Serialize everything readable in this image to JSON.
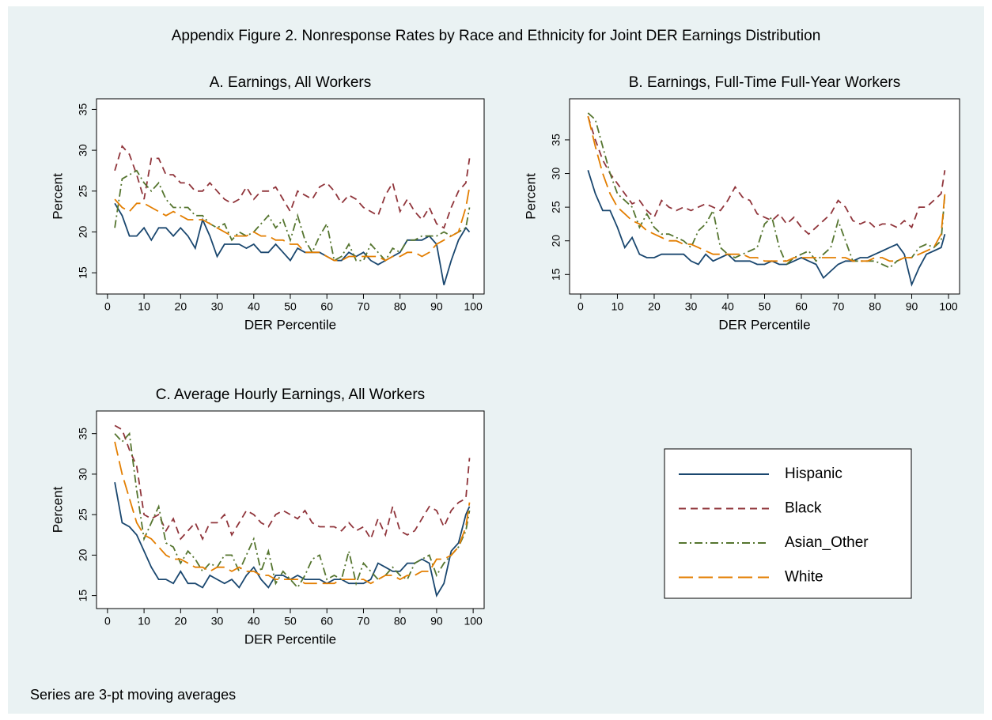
{
  "title": "Appendix Figure 2. Nonresponse Rates by Race and Ethnicity for Joint DER Earnings Distribution",
  "note": "Series are 3-pt moving averages",
  "legend": [
    {
      "name": "Hispanic",
      "color": "#1a476f",
      "dash": "solid"
    },
    {
      "name": "Black",
      "color": "#90353b",
      "dash": "dash"
    },
    {
      "name": "Asian_Other",
      "color": "#55752f",
      "dash": "dashdot"
    },
    {
      "name": "White",
      "color": "#e37e00",
      "dash": "longdash"
    }
  ],
  "chart_data": [
    {
      "type": "line",
      "title": "A. Earnings, All Workers",
      "xlabel": "DER Percentile",
      "ylabel": "Percent",
      "xlim": [
        -3,
        103
      ],
      "ylim": [
        12.4,
        36.3
      ],
      "xticks": [
        0,
        10,
        20,
        30,
        40,
        50,
        60,
        70,
        80,
        90,
        100
      ],
      "yticks": [
        15,
        20,
        25,
        30,
        35
      ],
      "x": [
        2,
        4,
        6,
        8,
        10,
        12,
        14,
        16,
        18,
        20,
        22,
        24,
        26,
        28,
        30,
        32,
        34,
        36,
        38,
        40,
        42,
        44,
        46,
        48,
        50,
        52,
        54,
        56,
        58,
        60,
        62,
        64,
        66,
        68,
        70,
        72,
        74,
        76,
        78,
        80,
        82,
        84,
        86,
        88,
        90,
        92,
        94,
        96,
        98,
        99
      ],
      "series": [
        {
          "values": [
            23.5,
            22,
            19.5,
            19.5,
            20.5,
            19,
            20.5,
            20.5,
            19.5,
            20.5,
            19.5,
            18,
            21.5,
            19.5,
            17,
            18.5,
            18.5,
            18.5,
            18,
            18.5,
            17.5,
            17.5,
            18.5,
            17.5,
            16.5,
            18,
            17.5,
            17.5,
            17.5,
            17,
            16.5,
            16.5,
            17.5,
            17,
            17.5,
            16.5,
            16,
            16.5,
            17,
            17.5,
            19,
            19,
            19,
            19.5,
            18.5,
            13.5,
            16.5,
            19,
            20.5,
            20
          ]
        },
        {
          "values": [
            27.5,
            30.5,
            29.5,
            27,
            24,
            29,
            29,
            27,
            27,
            26,
            26,
            25,
            25,
            26,
            25,
            24,
            23.5,
            24,
            25.5,
            24,
            25,
            25,
            25.5,
            24,
            22.5,
            25,
            24.5,
            24,
            25.5,
            26,
            25,
            23.5,
            24.5,
            24,
            23,
            22.5,
            22,
            24.5,
            26,
            22.5,
            24,
            22.5,
            21.5,
            23,
            21,
            20.5,
            23,
            25,
            26,
            29
          ]
        },
        {
          "values": [
            20.5,
            26.5,
            27,
            27.5,
            26,
            25,
            26,
            24,
            23,
            23,
            23,
            22,
            22,
            21,
            20.5,
            21,
            19,
            20,
            19.5,
            20,
            21,
            22,
            20.5,
            21.5,
            19,
            22,
            19,
            17.5,
            19.5,
            21,
            16.5,
            17,
            18.5,
            16.5,
            16.5,
            18.5,
            17.5,
            16.5,
            18,
            17.5,
            19,
            19,
            19.5,
            19.5,
            19.5,
            20,
            19.5,
            20,
            20.5,
            23
          ]
        },
        {
          "values": [
            24,
            23,
            22.5,
            23.5,
            23.5,
            23,
            22.5,
            22,
            22.5,
            22,
            21.5,
            21.5,
            21.5,
            21,
            20.5,
            20,
            19.5,
            19.5,
            19.5,
            20,
            19.5,
            19.5,
            19,
            19,
            18.5,
            18.5,
            17.5,
            17.5,
            17.5,
            17,
            16.5,
            16.5,
            17,
            17,
            17,
            17,
            17,
            16.5,
            17,
            17,
            17.5,
            17.5,
            17,
            17.5,
            18.5,
            19,
            19.5,
            20,
            23,
            25.5
          ]
        }
      ]
    },
    {
      "type": "line",
      "title": "B. Earnings, Full-Time Full-Year Workers",
      "xlabel": "DER Percentile",
      "ylabel": "Percent",
      "xlim": [
        -3,
        103
      ],
      "ylim": [
        12.1,
        41.1
      ],
      "xticks": [
        0,
        10,
        20,
        30,
        40,
        50,
        60,
        70,
        80,
        90,
        100
      ],
      "yticks": [
        15,
        20,
        25,
        30,
        35
      ],
      "x": [
        2,
        4,
        6,
        8,
        10,
        12,
        14,
        16,
        18,
        20,
        22,
        24,
        26,
        28,
        30,
        32,
        34,
        36,
        38,
        40,
        42,
        44,
        46,
        48,
        50,
        52,
        54,
        56,
        58,
        60,
        62,
        64,
        66,
        68,
        70,
        72,
        74,
        76,
        78,
        80,
        82,
        84,
        86,
        88,
        90,
        92,
        94,
        96,
        98,
        99
      ],
      "series": [
        {
          "values": [
            30.5,
            27,
            24.5,
            24.5,
            22,
            19,
            20.5,
            18,
            17.5,
            17.5,
            18,
            18,
            18,
            18,
            17,
            16.5,
            18,
            17,
            17.5,
            18,
            17,
            17,
            17,
            16.5,
            16.5,
            17,
            16.5,
            16.5,
            17,
            17.5,
            17,
            16.5,
            14.5,
            15.5,
            16.5,
            17,
            17,
            17.5,
            17.5,
            18,
            18.5,
            19,
            19.5,
            18,
            13.5,
            16,
            18,
            18.5,
            19,
            21
          ]
        },
        {
          "values": [
            38.5,
            35,
            32,
            30,
            28.5,
            27,
            25.5,
            26,
            24.5,
            23.5,
            26,
            25,
            24.5,
            25,
            24.5,
            25,
            25.5,
            25,
            24.5,
            26,
            28,
            26.5,
            26,
            24,
            23.5,
            23,
            24,
            22.5,
            23.5,
            22,
            21,
            22,
            23,
            24,
            26,
            25,
            23,
            22.5,
            23,
            22,
            22.5,
            22.5,
            22,
            23,
            22,
            25,
            25,
            26,
            27,
            30.5
          ]
        },
        {
          "values": [
            39,
            38,
            34,
            30,
            27,
            26,
            25,
            22,
            24,
            22,
            21,
            21,
            20.5,
            20,
            19,
            21.5,
            22.5,
            24.5,
            19,
            18,
            17.5,
            18,
            18.5,
            19,
            22.5,
            23.5,
            19,
            16.5,
            17.5,
            18,
            18.5,
            17,
            18,
            19,
            23,
            20,
            17,
            17,
            17,
            17,
            16.5,
            16,
            17,
            17.5,
            17.5,
            19,
            19.5,
            19,
            20,
            27
          ]
        },
        {
          "values": [
            38.5,
            34,
            30,
            27,
            25,
            24,
            23,
            22.5,
            21.5,
            21,
            20.5,
            20,
            20,
            19.5,
            19.5,
            19,
            18.5,
            18,
            18,
            18,
            18,
            18,
            17.5,
            17.5,
            17,
            17,
            17,
            17,
            17.5,
            17.5,
            17.5,
            17.5,
            17.5,
            17.5,
            17.5,
            17.5,
            17,
            17,
            17,
            17.5,
            17.5,
            17,
            17,
            17.5,
            17.5,
            18,
            18.5,
            19,
            21,
            27
          ]
        }
      ]
    },
    {
      "type": "line",
      "title": "C. Average Hourly Earnings, All Workers",
      "xlabel": "DER Percentile",
      "ylabel": "Percent",
      "xlim": [
        -3,
        103
      ],
      "ylim": [
        13.4,
        37.8
      ],
      "xticks": [
        0,
        10,
        20,
        30,
        40,
        50,
        60,
        70,
        80,
        90,
        100
      ],
      "yticks": [
        15,
        20,
        25,
        30,
        35
      ],
      "x": [
        2,
        4,
        6,
        8,
        10,
        12,
        14,
        16,
        18,
        20,
        22,
        24,
        26,
        28,
        30,
        32,
        34,
        36,
        38,
        40,
        42,
        44,
        46,
        48,
        50,
        52,
        54,
        56,
        58,
        60,
        62,
        64,
        66,
        68,
        70,
        72,
        74,
        76,
        78,
        80,
        82,
        84,
        86,
        88,
        90,
        92,
        94,
        96,
        98,
        99
      ],
      "series": [
        {
          "values": [
            29,
            24,
            23.5,
            22.5,
            20.5,
            18.5,
            17,
            17,
            16.5,
            18,
            16.5,
            16.5,
            16,
            17.5,
            17,
            16.5,
            17,
            16,
            17.5,
            18.5,
            17,
            16,
            17.5,
            17.5,
            17,
            17.5,
            17,
            17,
            17,
            16.5,
            17,
            17,
            16.5,
            16.5,
            16.5,
            17,
            19,
            18.5,
            18,
            18,
            19,
            19,
            19.5,
            19,
            15,
            16.5,
            20.5,
            21.5,
            25,
            26
          ]
        },
        {
          "values": [
            36,
            35.5,
            33,
            31,
            25,
            24.5,
            25,
            23,
            24.5,
            22,
            23,
            24,
            22,
            24,
            24,
            25,
            22.5,
            24,
            25.5,
            25,
            24,
            23.5,
            25,
            25.5,
            25,
            24.5,
            25.5,
            24,
            23.5,
            23.5,
            23.5,
            23,
            24,
            23,
            23.5,
            22,
            24.5,
            22.5,
            26,
            23,
            22.5,
            23,
            24.5,
            26,
            25.5,
            23.5,
            25.5,
            26.5,
            27,
            32
          ]
        },
        {
          "values": [
            35,
            34,
            35,
            28,
            22,
            24,
            26,
            21.5,
            21,
            19,
            20.5,
            19.5,
            18,
            19,
            18.5,
            20,
            20,
            18,
            20,
            22,
            18,
            20.5,
            16.5,
            18,
            17,
            16,
            17.5,
            19.5,
            20,
            17,
            17.5,
            17,
            20.5,
            16.5,
            19,
            18,
            17,
            17.5,
            18.5,
            17.5,
            17,
            19,
            19.5,
            20,
            17.5,
            19,
            20,
            21,
            23,
            25.5
          ]
        },
        {
          "values": [
            34,
            30,
            27,
            24,
            22.5,
            22,
            21,
            20,
            19.5,
            19.5,
            19,
            18.5,
            18.5,
            18,
            18.5,
            18.5,
            18,
            18.5,
            18,
            18,
            17.5,
            17.5,
            17,
            17,
            17,
            17,
            16.5,
            16.5,
            16.5,
            16.5,
            16.5,
            17,
            17,
            17,
            17,
            16.5,
            17,
            17.5,
            17.5,
            17,
            17.5,
            17.5,
            18,
            18,
            19.5,
            19.5,
            20,
            21,
            23.5,
            26.5
          ]
        }
      ]
    }
  ]
}
